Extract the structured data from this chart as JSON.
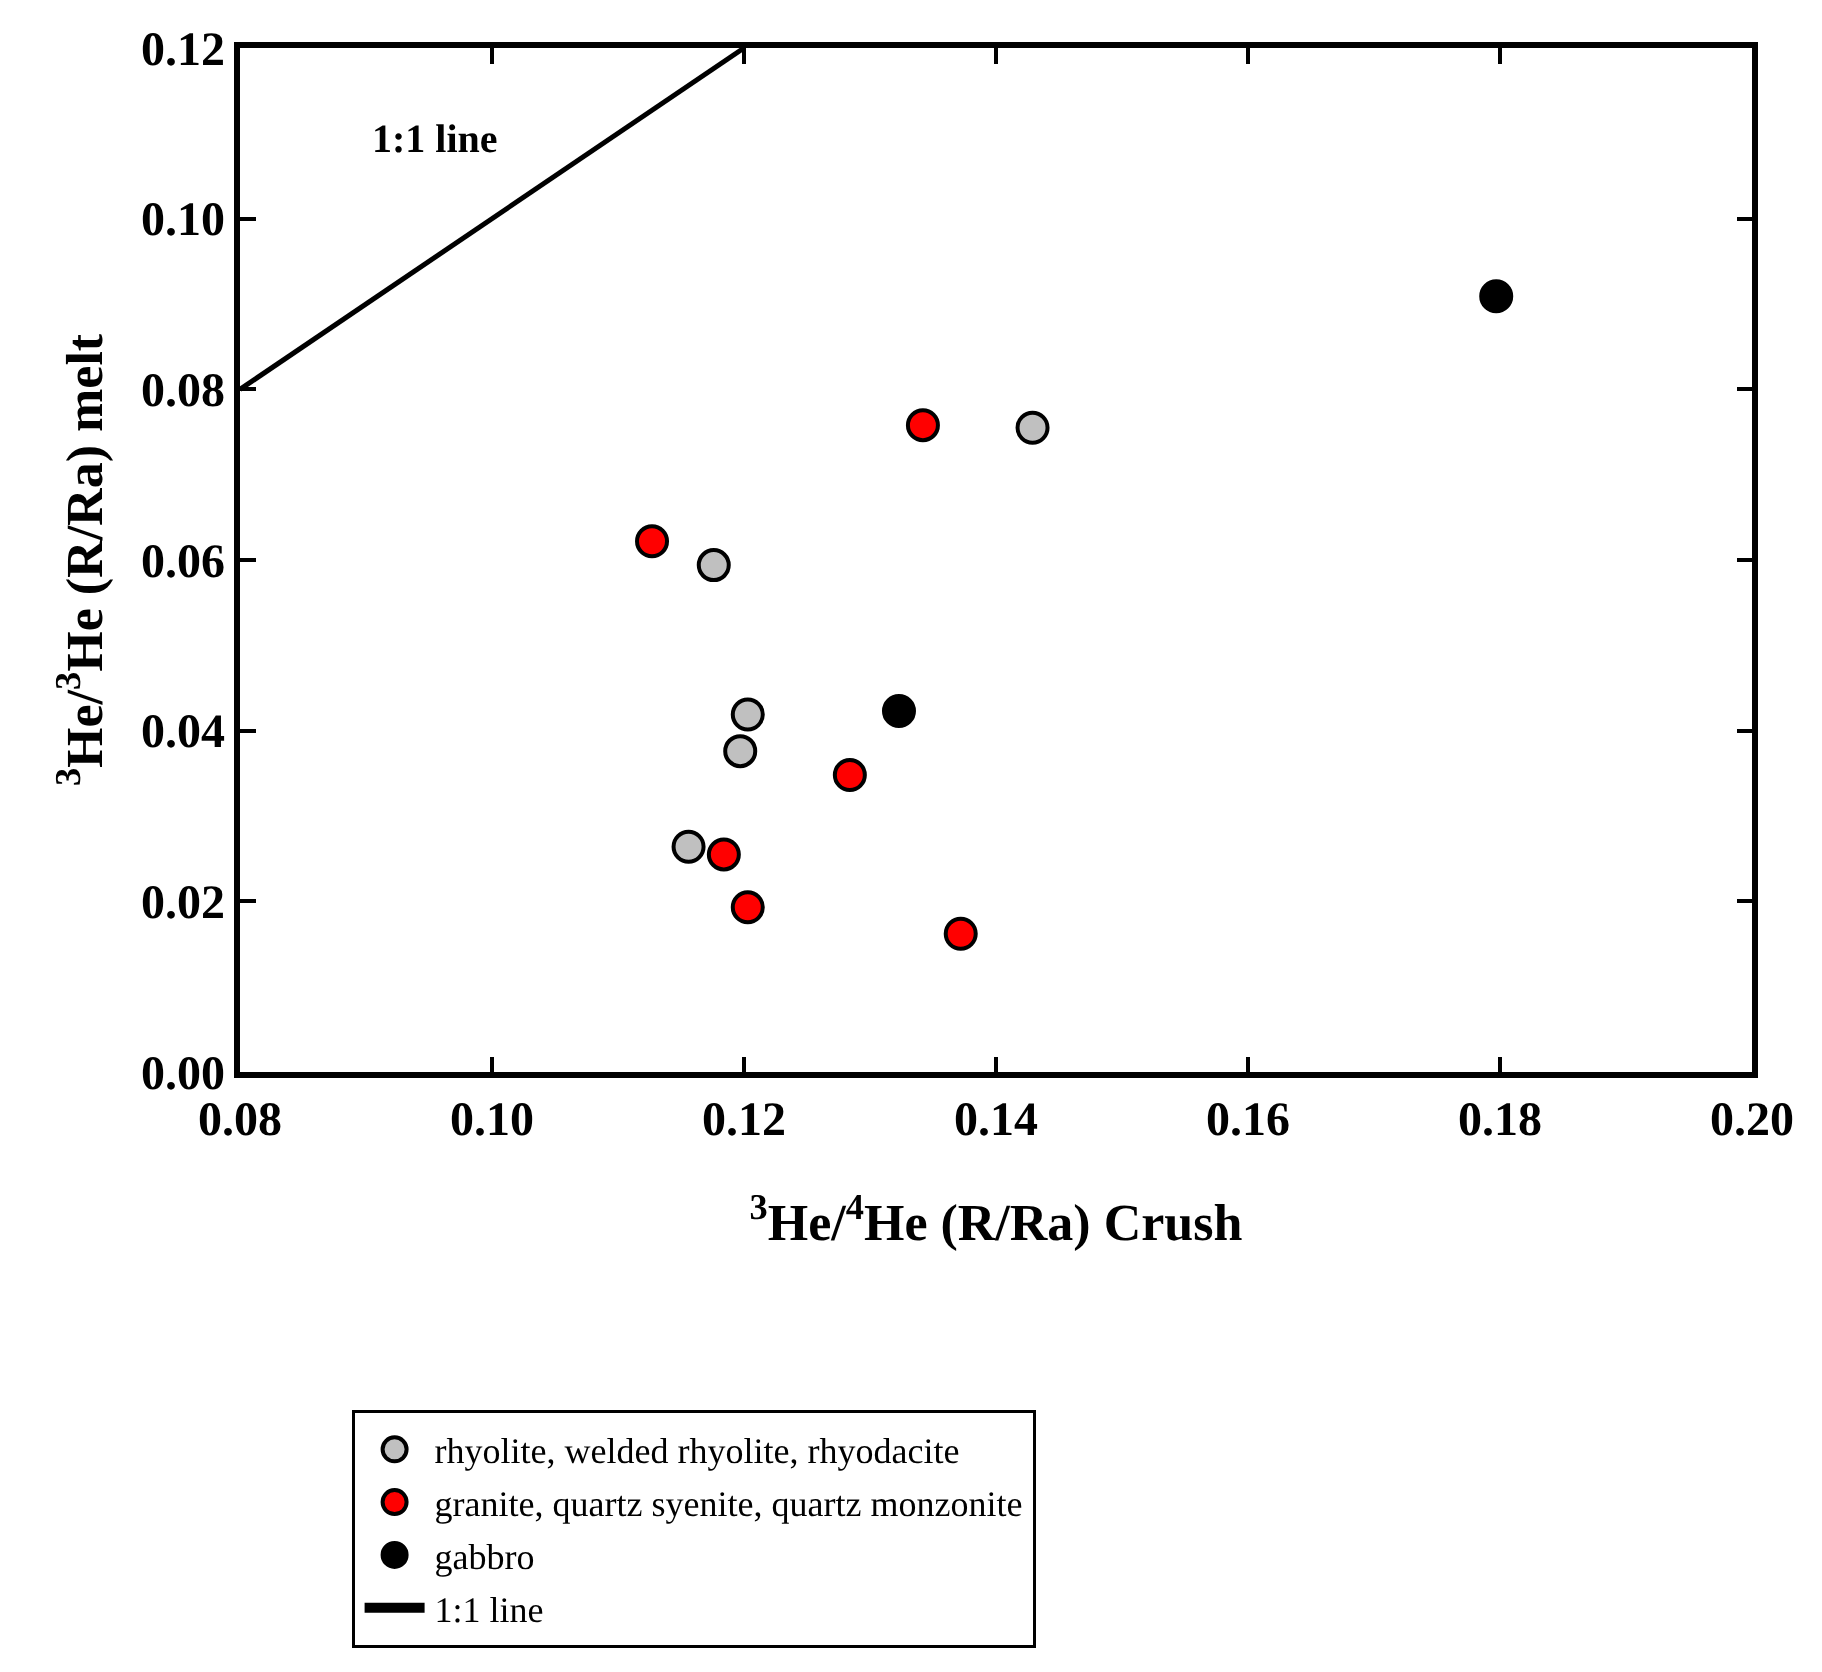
{
  "chart_data": {
    "type": "scatter",
    "xlabel": "$^{3}$He/$^{4}$He (R/Ra) Crush",
    "ylabel": "$^{3}$He/$^{3}$He (R/Ra) melt",
    "series": [
      {
        "name": "rhyolite, welded rhyolite, rhyodacite",
        "color": "#c0c0c0",
        "x": [
          0.1429,
          0.1176,
          0.1203,
          0.1197,
          0.1156
        ],
        "values": [
          0.0755,
          0.0594,
          0.0419,
          0.0376,
          0.0264
        ]
      },
      {
        "name": "granite, quartz syenite, quartz monzonite",
        "color": "#ff0000",
        "x": [
          0.1342,
          0.1127,
          0.1284,
          0.1184,
          0.1203,
          0.1372
        ],
        "values": [
          0.0758,
          0.0622,
          0.0348,
          0.0255,
          0.0193,
          0.0162
        ]
      },
      {
        "name": "gabbro",
        "color": "#000000",
        "x": [
          0.1797,
          0.1323
        ],
        "values": [
          0.0909,
          0.0423
        ]
      },
      {
        "name": "1:1 line",
        "type": "line",
        "color": "#000000",
        "marker": "none",
        "line_style": "solid",
        "x": [
          0.08,
          0.12
        ],
        "values": [
          0.08,
          0.12
        ]
      }
    ],
    "annotations": [
      "1:1 line"
    ],
    "marker": "circle",
    "xlim": [
      0.08,
      0.2
    ],
    "xticks": [
      0.08,
      {
        "value": 0.1,
        "label": "0.10"
      },
      0.12,
      0.14,
      0.16,
      0.18,
      {
        "value": 0.2,
        "label": "0.20"
      }
    ],
    "ylim": [
      0.0,
      0.12
    ],
    "yticks": [
      {
        "value": 0.0,
        "label": "0.00"
      },
      0.02,
      0.04,
      0.06,
      0.08,
      {
        "value": 0.1,
        "label": "0.10"
      },
      0.12
    ],
    "grid": false,
    "legend": "bottom"
  }
}
